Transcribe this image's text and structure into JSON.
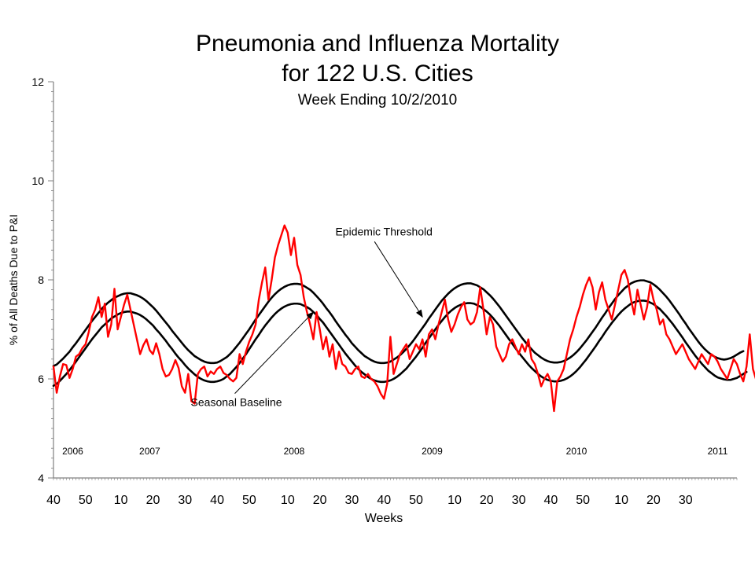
{
  "chart_data": {
    "type": "line",
    "title": "Pneumonia and Influenza Mortality",
    "subtitle": "for 122 U.S. Cities",
    "subtitle2": "Week Ending   10/2/2010",
    "xlabel": "Weeks",
    "ylabel": "% of All Deaths Due to P&I",
    "ylim": [
      4,
      12
    ],
    "yticks": [
      "4",
      "6",
      "8",
      "10",
      "12"
    ],
    "xtick_labels": [
      "40",
      "50",
      "10",
      "20",
      "30",
      "40",
      "50",
      "10",
      "20",
      "30",
      "40",
      "50",
      "10",
      "20",
      "30",
      "40",
      "50",
      "10",
      "20",
      "30"
    ],
    "xtick_week_index": [
      0,
      10,
      21,
      31,
      41,
      51,
      61,
      73,
      83,
      93,
      103,
      113,
      125,
      135,
      145,
      155,
      165,
      177,
      187,
      197
    ],
    "year_labels": [
      {
        "label": "2006",
        "week_index": 6
      },
      {
        "label": "2007",
        "week_index": 30
      },
      {
        "label": "2008",
        "week_index": 75
      },
      {
        "label": "2009",
        "week_index": 118
      },
      {
        "label": "2010",
        "week_index": 163
      },
      {
        "label": "2011",
        "week_index": 207
      }
    ],
    "x_range": [
      0,
      213
    ],
    "annotations": [
      {
        "text": "Epidemic Threshold",
        "label_week": 103,
        "label_y": 8.9,
        "arrow_to_week": 115,
        "arrow_to_y": 7.25
      },
      {
        "text": "Seasonal Baseline",
        "label_week": 57,
        "label_y": 5.45,
        "arrow_to_week": 81,
        "arrow_to_y": 7.35
      }
    ],
    "series": [
      {
        "name": "Epidemic Threshold",
        "color": "#000000",
        "values": [
          6.26,
          6.29,
          6.35,
          6.41,
          6.48,
          6.55,
          6.64,
          6.72,
          6.81,
          6.9,
          6.99,
          7.08,
          7.17,
          7.25,
          7.33,
          7.41,
          7.48,
          7.54,
          7.59,
          7.64,
          7.67,
          7.7,
          7.72,
          7.73,
          7.73,
          7.71,
          7.69,
          7.66,
          7.62,
          7.57,
          7.51,
          7.45,
          7.38,
          7.3,
          7.22,
          7.14,
          7.06,
          6.97,
          6.89,
          6.81,
          6.73,
          6.65,
          6.58,
          6.52,
          6.46,
          6.42,
          6.38,
          6.35,
          6.33,
          6.32,
          6.32,
          6.33,
          6.36,
          6.4,
          6.44,
          6.5,
          6.57,
          6.65,
          6.73,
          6.82,
          6.91,
          7.0,
          7.1,
          7.2,
          7.29,
          7.38,
          7.47,
          7.56,
          7.64,
          7.71,
          7.77,
          7.82,
          7.86,
          7.89,
          7.91,
          7.92,
          7.92,
          7.91,
          7.88,
          7.84,
          7.8,
          7.74,
          7.67,
          7.6,
          7.52,
          7.43,
          7.35,
          7.26,
          7.16,
          7.07,
          6.98,
          6.89,
          6.81,
          6.72,
          6.65,
          6.58,
          6.52,
          6.46,
          6.42,
          6.38,
          6.35,
          6.33,
          6.32,
          6.32,
          6.33,
          6.35,
          6.39,
          6.43,
          6.48,
          6.54,
          6.61,
          6.68,
          6.76,
          6.85,
          6.94,
          7.03,
          7.12,
          7.22,
          7.31,
          7.4,
          7.49,
          7.58,
          7.65,
          7.72,
          7.78,
          7.83,
          7.87,
          7.9,
          7.92,
          7.93,
          7.93,
          7.91,
          7.89,
          7.85,
          7.81,
          7.75,
          7.69,
          7.62,
          7.54,
          7.46,
          7.37,
          7.28,
          7.19,
          7.1,
          7.01,
          6.92,
          6.83,
          6.75,
          6.67,
          6.6,
          6.53,
          6.48,
          6.43,
          6.39,
          6.36,
          6.34,
          6.33,
          6.33,
          6.34,
          6.36,
          6.39,
          6.43,
          6.48,
          6.54,
          6.61,
          6.69,
          6.77,
          6.86,
          6.95,
          7.04,
          7.14,
          7.24,
          7.33,
          7.43,
          7.52,
          7.61,
          7.69,
          7.76,
          7.83,
          7.88,
          7.93,
          7.96,
          7.98,
          7.99,
          7.99,
          7.97,
          7.95,
          7.91,
          7.86,
          7.8,
          7.73,
          7.66,
          7.58,
          7.49,
          7.4,
          7.31,
          7.21,
          7.12,
          7.02,
          6.93,
          6.84,
          6.75,
          6.67,
          6.6,
          6.54,
          6.49,
          6.45,
          6.42,
          6.4,
          6.39,
          6.4,
          6.42,
          6.45,
          6.49,
          6.53,
          6.56
        ]
      },
      {
        "name": "Seasonal Baseline",
        "color": "#000000",
        "values": [
          5.86,
          5.9,
          5.96,
          6.03,
          6.1,
          6.18,
          6.26,
          6.35,
          6.44,
          6.53,
          6.62,
          6.71,
          6.8,
          6.88,
          6.96,
          7.04,
          7.1,
          7.16,
          7.22,
          7.26,
          7.3,
          7.33,
          7.35,
          7.36,
          7.36,
          7.34,
          7.32,
          7.29,
          7.25,
          7.2,
          7.14,
          7.08,
          7.0,
          6.93,
          6.85,
          6.77,
          6.68,
          6.6,
          6.51,
          6.43,
          6.36,
          6.28,
          6.21,
          6.15,
          6.09,
          6.04,
          6.0,
          5.97,
          5.95,
          5.94,
          5.94,
          5.95,
          5.97,
          6.0,
          6.05,
          6.1,
          6.17,
          6.24,
          6.32,
          6.41,
          6.5,
          6.6,
          6.7,
          6.8,
          6.89,
          6.99,
          7.08,
          7.16,
          7.24,
          7.31,
          7.37,
          7.42,
          7.46,
          7.49,
          7.51,
          7.52,
          7.52,
          7.51,
          7.48,
          7.45,
          7.41,
          7.35,
          7.29,
          7.21,
          7.14,
          7.05,
          6.96,
          6.87,
          6.78,
          6.69,
          6.6,
          6.51,
          6.43,
          6.35,
          6.27,
          6.2,
          6.14,
          6.09,
          6.04,
          6.0,
          5.97,
          5.95,
          5.94,
          5.94,
          5.95,
          5.97,
          6.0,
          6.04,
          6.09,
          6.15,
          6.21,
          6.29,
          6.37,
          6.45,
          6.54,
          6.63,
          6.73,
          6.82,
          6.91,
          7.0,
          7.09,
          7.17,
          7.25,
          7.32,
          7.38,
          7.43,
          7.47,
          7.5,
          7.52,
          7.53,
          7.53,
          7.52,
          7.49,
          7.46,
          7.41,
          7.36,
          7.3,
          7.23,
          7.15,
          7.07,
          6.98,
          6.89,
          6.8,
          6.71,
          6.62,
          6.53,
          6.45,
          6.37,
          6.29,
          6.22,
          6.16,
          6.1,
          6.05,
          6.01,
          5.98,
          5.96,
          5.95,
          5.95,
          5.96,
          5.98,
          6.01,
          6.05,
          6.1,
          6.16,
          6.23,
          6.31,
          6.39,
          6.48,
          6.57,
          6.66,
          6.76,
          6.85,
          6.95,
          7.04,
          7.13,
          7.21,
          7.29,
          7.36,
          7.42,
          7.47,
          7.52,
          7.55,
          7.57,
          7.58,
          7.58,
          7.57,
          7.54,
          7.51,
          7.46,
          7.41,
          7.34,
          7.27,
          7.19,
          7.11,
          7.02,
          6.93,
          6.84,
          6.74,
          6.65,
          6.56,
          6.47,
          6.39,
          6.31,
          6.24,
          6.17,
          6.12,
          6.07,
          6.03,
          6.01,
          5.99,
          5.98,
          5.98,
          6.0,
          6.02,
          6.06,
          6.1,
          6.14
        ]
      },
      {
        "name": "P&I Mortality",
        "color": "#ff0000",
        "values": [
          6.25,
          5.72,
          6.05,
          6.3,
          6.28,
          6.02,
          6.2,
          6.45,
          6.5,
          6.62,
          6.7,
          6.95,
          7.25,
          7.4,
          7.65,
          7.25,
          7.52,
          6.85,
          7.1,
          7.82,
          7.0,
          7.25,
          7.5,
          7.7,
          7.4,
          7.1,
          6.8,
          6.5,
          6.68,
          6.8,
          6.58,
          6.5,
          6.72,
          6.5,
          6.2,
          6.05,
          6.08,
          6.2,
          6.38,
          6.22,
          5.85,
          5.72,
          6.1,
          5.55,
          5.5,
          6.1,
          6.2,
          6.25,
          6.05,
          6.15,
          6.1,
          6.2,
          6.25,
          6.12,
          6.08,
          6.0,
          5.95,
          6.02,
          6.5,
          6.3,
          6.55,
          6.75,
          6.9,
          7.1,
          7.6,
          7.95,
          8.25,
          7.6,
          8.0,
          8.45,
          8.7,
          8.9,
          9.1,
          8.95,
          8.5,
          8.85,
          8.3,
          8.1,
          7.65,
          7.35,
          7.1,
          6.8,
          7.35,
          7.0,
          6.6,
          6.85,
          6.45,
          6.7,
          6.2,
          6.55,
          6.3,
          6.25,
          6.12,
          6.1,
          6.2,
          6.25,
          6.05,
          6.02,
          6.1,
          6.0,
          5.95,
          5.85,
          5.7,
          5.6,
          5.9,
          6.85,
          6.1,
          6.3,
          6.5,
          6.6,
          6.7,
          6.4,
          6.55,
          6.7,
          6.6,
          6.8,
          6.45,
          6.9,
          7.0,
          6.8,
          7.1,
          7.35,
          7.6,
          7.2,
          6.95,
          7.1,
          7.3,
          7.45,
          7.55,
          7.2,
          7.1,
          7.15,
          7.35,
          7.85,
          7.4,
          6.9,
          7.25,
          7.1,
          6.65,
          6.5,
          6.35,
          6.45,
          6.7,
          6.8,
          6.65,
          6.5,
          6.7,
          6.55,
          6.8,
          6.4,
          6.3,
          6.1,
          5.85,
          6.0,
          6.1,
          5.95,
          5.35,
          5.95,
          6.05,
          6.2,
          6.5,
          6.8,
          7.0,
          7.25,
          7.45,
          7.7,
          7.9,
          8.05,
          7.85,
          7.4,
          7.75,
          7.95,
          7.6,
          7.4,
          7.2,
          7.5,
          7.8,
          8.1,
          8.2,
          8.0,
          7.6,
          7.3,
          7.8,
          7.5,
          7.2,
          7.45,
          7.9,
          7.6,
          7.4,
          7.1,
          7.2,
          6.9,
          6.8,
          6.65,
          6.5,
          6.6,
          6.7,
          6.55,
          6.4,
          6.3,
          6.2,
          6.35,
          6.5,
          6.4,
          6.3,
          6.5,
          6.45,
          6.35,
          6.2,
          6.1,
          6.0,
          6.2,
          6.4,
          6.3,
          6.1,
          5.95,
          6.25,
          6.9,
          6.2,
          5.98
        ]
      }
    ]
  }
}
